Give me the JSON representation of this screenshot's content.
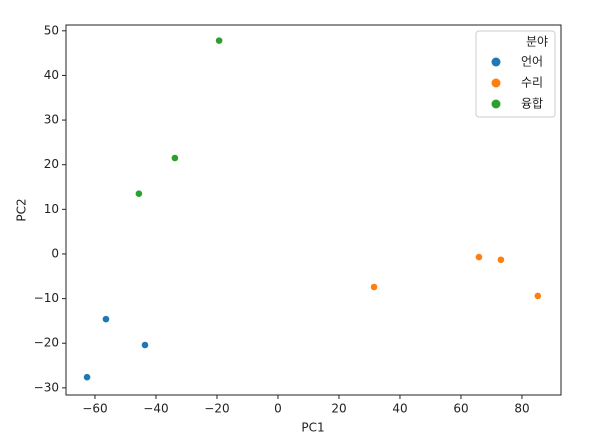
{
  "chart_data": {
    "type": "scatter",
    "x_label": "PC1",
    "y_label": "PC2",
    "legend_title": "분야",
    "legend": "upper right",
    "xlim": [
      -69.5,
      92.8
    ],
    "ylim": [
      -31.6,
      51.3
    ],
    "xticks": [
      {
        "value": -60,
        "label": "−60"
      },
      {
        "value": -40,
        "label": "−40"
      },
      {
        "value": -20,
        "label": "−20"
      },
      0,
      20,
      40,
      60,
      80
    ],
    "yticks": [
      {
        "value": -30,
        "label": "−30"
      },
      {
        "value": -20,
        "label": "−20"
      },
      {
        "value": -10,
        "label": "−10"
      },
      0,
      10,
      20,
      30,
      40,
      50
    ],
    "series": [
      {
        "name": "언어",
        "color": "#1f77b4",
        "x": [
          -62.6,
          -56.4,
          -43.6
        ],
        "values": [
          -27.6,
          -14.6,
          -20.4
        ]
      },
      {
        "name": "수리",
        "color": "#ff7f0e",
        "x": [
          31.5,
          65.9,
          73.1,
          85.2
        ],
        "values": [
          -7.4,
          -0.7,
          -1.3,
          -9.4
        ]
      },
      {
        "name": "융합",
        "color": "#2ca02c",
        "x": [
          -45.6,
          -33.8,
          -19.3
        ],
        "values": [
          13.5,
          21.5,
          47.8
        ]
      }
    ]
  }
}
